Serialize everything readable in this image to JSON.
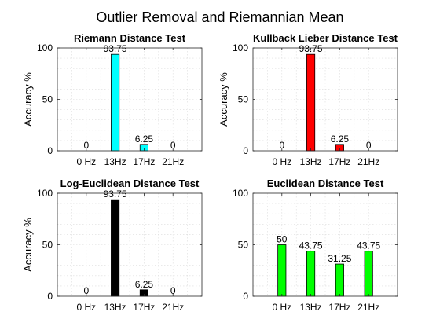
{
  "figure": {
    "title": "Outlier Removal and Riemannian Mean"
  },
  "chart_data": [
    {
      "type": "bar",
      "title": "Riemann Distance Test",
      "categories": [
        "0 Hz",
        "13Hz",
        "17Hz",
        "21Hz"
      ],
      "values": [
        0,
        93.75,
        6.25,
        0
      ],
      "value_labels": [
        "0",
        "93.75",
        "6.25",
        "0"
      ],
      "color": "#00ffff",
      "ylabel": "Accuracy %",
      "ylim": [
        0,
        100
      ],
      "yticks": [
        0,
        50,
        100
      ],
      "grid": true
    },
    {
      "type": "bar",
      "title": "Kullback Lieber Distance Test",
      "categories": [
        "0 Hz",
        "13Hz",
        "17Hz",
        "21Hz"
      ],
      "values": [
        0,
        93.75,
        6.25,
        0
      ],
      "value_labels": [
        "0",
        "93.75",
        "6.25",
        "0"
      ],
      "color": "#ff0000",
      "ylabel": "Accuracy %",
      "ylim": [
        0,
        100
      ],
      "yticks": [
        0,
        50,
        100
      ],
      "grid": true
    },
    {
      "type": "bar",
      "title": "Log-Euclidean Distance Test",
      "categories": [
        "0 Hz",
        "13Hz",
        "17Hz",
        "21Hz"
      ],
      "values": [
        0,
        93.75,
        6.25,
        0
      ],
      "value_labels": [
        "0",
        "93.75",
        "6.25",
        "0"
      ],
      "color": "#000000",
      "ylabel": "Accuracy %",
      "ylim": [
        0,
        100
      ],
      "yticks": [
        0,
        50,
        100
      ],
      "grid": true
    },
    {
      "type": "bar",
      "title": "Euclidean Distance Test",
      "categories": [
        "0 Hz",
        "13Hz",
        "17Hz",
        "21Hz"
      ],
      "values": [
        50,
        43.75,
        31.25,
        43.75
      ],
      "value_labels": [
        "50",
        "43.75",
        "31.25",
        "43.75"
      ],
      "color": "#00ff00",
      "ylabel": "",
      "ylim": [
        0,
        100
      ],
      "yticks": [
        0,
        50,
        100
      ],
      "grid": true
    }
  ]
}
